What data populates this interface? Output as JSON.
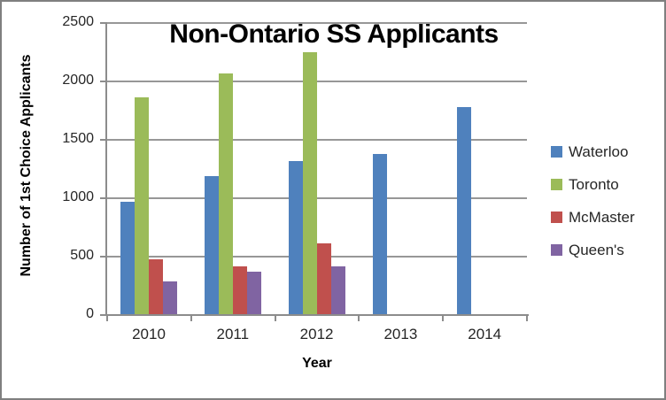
{
  "chart_data": {
    "type": "bar",
    "title": "Non-Ontario SS Applicants",
    "xlabel": "Year",
    "ylabel": "Number of 1st Choice Applicants",
    "categories": [
      "2010",
      "2011",
      "2012",
      "2013",
      "2014"
    ],
    "series": [
      {
        "name": "Waterloo",
        "color": "#4F81BD",
        "values": [
          970,
          1190,
          1320,
          1380,
          1780
        ]
      },
      {
        "name": "Toronto",
        "color": "#9BBB59",
        "values": [
          1860,
          2070,
          2250,
          null,
          null
        ]
      },
      {
        "name": "McMaster",
        "color": "#C0504D",
        "values": [
          475,
          415,
          615,
          null,
          null
        ]
      },
      {
        "name": "Queen's",
        "color": "#8064A2",
        "values": [
          290,
          375,
          420,
          null,
          null
        ]
      }
    ],
    "ylim": [
      0,
      2500
    ],
    "ytick_step": 500,
    "yticks": [
      0,
      500,
      1000,
      1500,
      2000,
      2500
    ],
    "grid": true,
    "legend_position": "right",
    "colors": {
      "axis": "#8C8C8C",
      "gridline": "#979797",
      "frame_border": "#7F7F7F",
      "background": "#FFFFFF",
      "title_text": "#000000",
      "tick_text": "#262626"
    }
  }
}
